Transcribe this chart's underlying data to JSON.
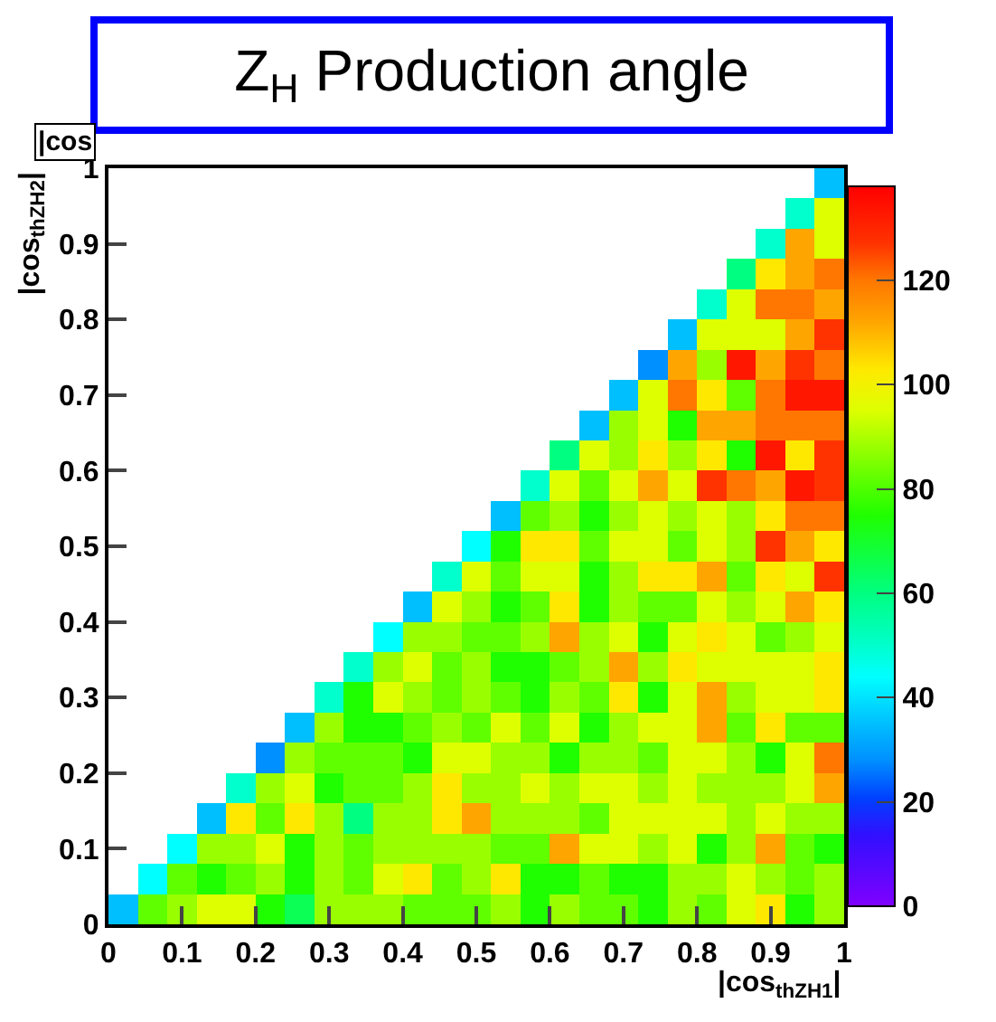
{
  "chart_data": {
    "type": "heatmap",
    "title": "Z$_{H}$ Production angle",
    "xlabel": "|cos$_{thZH1}$|",
    "ylabel": "|cos$_{thZH2}$|",
    "annotations": [
      "|cos"
    ],
    "xlim": [
      0,
      1
    ],
    "ylim": [
      0,
      1
    ],
    "xticks": [
      0,
      0.1,
      0.2,
      0.3,
      0.4,
      0.5,
      0.6,
      0.7,
      0.8,
      0.9,
      1
    ],
    "yticks": [
      0,
      0.1,
      0.2,
      0.3,
      0.4,
      0.5,
      0.6,
      0.7,
      0.8,
      0.9,
      1
    ],
    "clim": [
      0,
      138
    ],
    "cticks": [
      0,
      20,
      40,
      60,
      80,
      100,
      120
    ],
    "grid": false,
    "cells": [
      [
        null,
        null,
        null,
        null,
        null,
        null,
        null,
        null,
        null,
        null,
        null,
        null,
        null,
        null,
        null,
        null,
        null,
        null,
        null,
        null,
        null,
        null,
        null,
        null,
        35
      ],
      [
        null,
        null,
        null,
        null,
        null,
        null,
        null,
        null,
        null,
        null,
        null,
        null,
        null,
        null,
        null,
        null,
        null,
        null,
        null,
        null,
        null,
        null,
        null,
        50,
        95
      ],
      [
        null,
        null,
        null,
        null,
        null,
        null,
        null,
        null,
        null,
        null,
        null,
        null,
        null,
        null,
        null,
        null,
        null,
        null,
        null,
        null,
        null,
        null,
        50,
        112,
        95
      ],
      [
        null,
        null,
        null,
        null,
        null,
        null,
        null,
        null,
        null,
        null,
        null,
        null,
        null,
        null,
        null,
        null,
        null,
        null,
        null,
        null,
        null,
        60,
        103,
        112,
        120
      ],
      [
        null,
        null,
        null,
        null,
        null,
        null,
        null,
        null,
        null,
        null,
        null,
        null,
        null,
        null,
        null,
        null,
        null,
        null,
        null,
        null,
        50,
        95,
        120,
        120,
        112
      ],
      [
        null,
        null,
        null,
        null,
        null,
        null,
        null,
        null,
        null,
        null,
        null,
        null,
        null,
        null,
        null,
        null,
        null,
        null,
        null,
        35,
        95,
        95,
        95,
        112,
        127
      ],
      [
        null,
        null,
        null,
        null,
        null,
        null,
        null,
        null,
        null,
        null,
        null,
        null,
        null,
        null,
        null,
        null,
        null,
        null,
        28,
        112,
        88,
        133,
        112,
        127,
        120
      ],
      [
        null,
        null,
        null,
        null,
        null,
        null,
        null,
        null,
        null,
        null,
        null,
        null,
        null,
        null,
        null,
        null,
        null,
        35,
        95,
        120,
        103,
        82,
        120,
        133,
        133
      ],
      [
        null,
        null,
        null,
        null,
        null,
        null,
        null,
        null,
        null,
        null,
        null,
        null,
        null,
        null,
        null,
        null,
        35,
        88,
        95,
        75,
        112,
        112,
        120,
        120,
        120
      ],
      [
        null,
        null,
        null,
        null,
        null,
        null,
        null,
        null,
        null,
        null,
        null,
        null,
        null,
        null,
        null,
        60,
        95,
        88,
        103,
        88,
        103,
        75,
        133,
        103,
        127
      ],
      [
        null,
        null,
        null,
        null,
        null,
        null,
        null,
        null,
        null,
        null,
        null,
        null,
        null,
        null,
        50,
        95,
        82,
        95,
        112,
        95,
        127,
        120,
        112,
        133,
        127
      ],
      [
        null,
        null,
        null,
        null,
        null,
        null,
        null,
        null,
        null,
        null,
        null,
        null,
        null,
        35,
        82,
        88,
        75,
        88,
        95,
        88,
        95,
        88,
        103,
        120,
        120
      ],
      [
        null,
        null,
        null,
        null,
        null,
        null,
        null,
        null,
        null,
        null,
        null,
        null,
        44,
        75,
        103,
        103,
        82,
        95,
        95,
        82,
        95,
        88,
        127,
        112,
        103
      ],
      [
        null,
        null,
        null,
        null,
        null,
        null,
        null,
        null,
        null,
        null,
        null,
        50,
        95,
        82,
        95,
        95,
        75,
        88,
        103,
        103,
        112,
        82,
        103,
        95,
        127
      ],
      [
        null,
        null,
        null,
        null,
        null,
        null,
        null,
        null,
        null,
        null,
        35,
        95,
        88,
        75,
        82,
        103,
        75,
        88,
        82,
        82,
        95,
        88,
        95,
        112,
        103
      ],
      [
        null,
        null,
        null,
        null,
        null,
        null,
        null,
        null,
        null,
        44,
        88,
        88,
        82,
        82,
        88,
        112,
        88,
        95,
        75,
        95,
        103,
        95,
        82,
        88,
        95
      ],
      [
        null,
        null,
        null,
        null,
        null,
        null,
        null,
        null,
        50,
        88,
        95,
        82,
        88,
        75,
        75,
        82,
        88,
        112,
        88,
        103,
        95,
        95,
        95,
        95,
        103
      ],
      [
        null,
        null,
        null,
        null,
        null,
        null,
        null,
        50,
        75,
        95,
        88,
        82,
        88,
        82,
        75,
        88,
        82,
        103,
        75,
        95,
        112,
        88,
        95,
        95,
        103
      ],
      [
        null,
        null,
        null,
        null,
        null,
        null,
        35,
        88,
        75,
        75,
        82,
        88,
        82,
        95,
        82,
        95,
        75,
        88,
        95,
        95,
        112,
        82,
        103,
        82,
        82
      ],
      [
        null,
        null,
        null,
        null,
        null,
        28,
        88,
        82,
        82,
        82,
        75,
        95,
        95,
        88,
        88,
        75,
        88,
        88,
        82,
        95,
        95,
        88,
        75,
        95,
        120
      ],
      [
        null,
        null,
        null,
        null,
        50,
        88,
        95,
        75,
        82,
        82,
        88,
        103,
        88,
        88,
        95,
        88,
        95,
        95,
        88,
        95,
        88,
        88,
        88,
        95,
        112
      ],
      [
        null,
        null,
        null,
        35,
        103,
        82,
        103,
        88,
        60,
        88,
        88,
        103,
        112,
        88,
        88,
        88,
        82,
        95,
        95,
        95,
        95,
        88,
        95,
        88,
        88
      ],
      [
        null,
        null,
        44,
        88,
        88,
        95,
        75,
        88,
        82,
        88,
        88,
        88,
        88,
        82,
        82,
        112,
        95,
        95,
        88,
        95,
        75,
        88,
        112,
        82,
        75
      ],
      [
        null,
        44,
        82,
        75,
        82,
        88,
        75,
        88,
        82,
        95,
        103,
        82,
        88,
        103,
        75,
        75,
        82,
        75,
        75,
        88,
        88,
        95,
        88,
        82,
        88
      ],
      [
        35,
        82,
        88,
        95,
        95,
        75,
        65,
        88,
        88,
        88,
        82,
        82,
        82,
        88,
        75,
        88,
        82,
        82,
        75,
        88,
        82,
        95,
        103,
        75,
        88
      ]
    ]
  }
}
